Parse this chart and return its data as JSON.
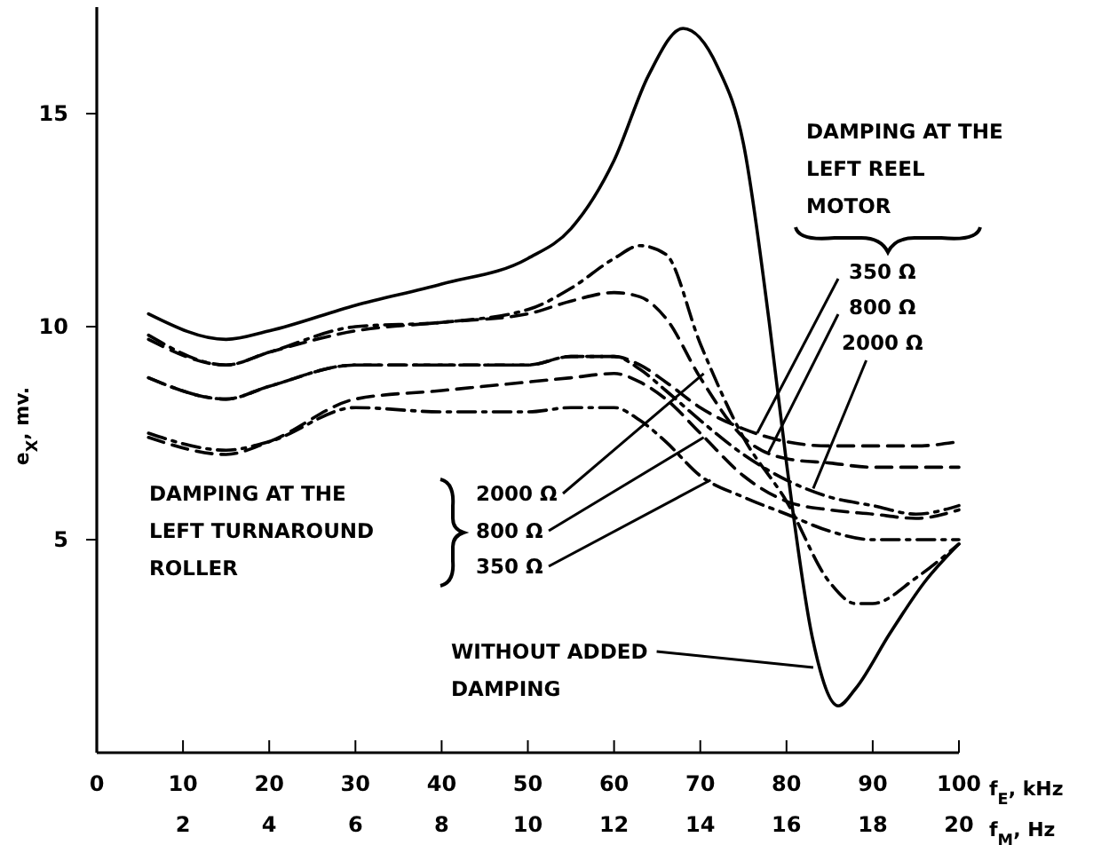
{
  "chart_data": {
    "type": "line",
    "xlabel": "f$_{E}$, kHz",
    "x2label": "f$_{M}$, Hz",
    "ylabel": "e$_{X}$, mv.",
    "xlim": [
      0,
      100
    ],
    "xticks": [
      0,
      10,
      20,
      30,
      40,
      50,
      60,
      70,
      80,
      90,
      100
    ],
    "x2lim": [
      0,
      20
    ],
    "x2ticks": [
      2,
      4,
      6,
      8,
      10,
      12,
      14,
      16,
      18,
      20
    ],
    "ylim": [
      0,
      17.5
    ],
    "yticks": [
      5,
      10,
      15
    ],
    "grid": false,
    "marker": "none",
    "x": [
      6,
      15,
      20,
      30,
      40,
      50,
      55,
      60,
      63,
      66,
      70,
      75,
      80,
      85,
      90,
      95,
      100
    ],
    "series": [
      {
        "color": "#000000",
        "line_style": "solid",
        "x": [
          6,
          15,
          20,
          30,
          40,
          50,
          55,
          60,
          64,
          68,
          72,
          75,
          78,
          80,
          83,
          86,
          88,
          92,
          96,
          100
        ],
        "values": [
          10.3,
          9.7,
          9.9,
          10.5,
          11.0,
          11.6,
          12.3,
          13.9,
          15.9,
          17.0,
          16.1,
          14.3,
          10.1,
          6.8,
          2.7,
          1.1,
          1.5,
          2.8,
          4.0,
          4.9
        ]
      },
      {
        "color": "#000000",
        "line_style": "dashdot",
        "x": [
          6,
          15,
          20,
          30,
          40,
          50,
          55,
          60,
          63,
          66,
          70,
          75,
          80,
          85,
          88,
          90,
          95,
          100
        ],
        "values": [
          9.8,
          9.1,
          9.4,
          10.0,
          10.1,
          10.4,
          10.9,
          11.6,
          11.9,
          11.7,
          9.6,
          7.4,
          5.9,
          4.0,
          3.5,
          3.5,
          4.1,
          4.9
        ]
      },
      {
        "color": "#000000",
        "line_style": "dashed",
        "values": [
          9.7,
          9.1,
          9.4,
          9.9,
          10.1,
          10.3,
          10.6,
          10.8,
          10.7,
          10.2,
          8.8,
          7.4,
          6.9,
          6.8,
          6.7,
          6.7,
          6.7
        ]
      },
      {
        "color": "#000000",
        "line_style": "dashed",
        "values": [
          8.8,
          8.3,
          8.6,
          9.1,
          9.1,
          9.1,
          9.3,
          9.3,
          9.1,
          8.7,
          8.1,
          7.6,
          7.3,
          7.2,
          7.2,
          7.2,
          7.3
        ]
      },
      {
        "color": "#000000",
        "line_style": "dashdot",
        "values": [
          8.8,
          8.3,
          8.6,
          9.1,
          9.1,
          9.1,
          9.3,
          9.3,
          9.0,
          8.5,
          7.8,
          7.0,
          6.4,
          6.0,
          5.8,
          5.6,
          5.8
        ]
      },
      {
        "color": "#000000",
        "line_style": "dashed",
        "values": [
          7.4,
          7.0,
          7.3,
          8.3,
          8.5,
          8.7,
          8.8,
          8.9,
          8.7,
          8.3,
          7.5,
          6.5,
          5.9,
          5.7,
          5.6,
          5.5,
          5.7
        ]
      },
      {
        "color": "#000000",
        "line_style": "dashdot",
        "values": [
          7.5,
          7.1,
          7.3,
          8.1,
          8.0,
          8.0,
          8.1,
          8.1,
          7.8,
          7.3,
          6.5,
          6.0,
          5.6,
          5.2,
          5.0,
          5.0,
          5.0
        ]
      }
    ],
    "annotations": [
      "DAMPING AT THE\nLEFT REEL\nMOTOR",
      {
        "text": "350 Ω",
        "x": 76.6,
        "y": 7.5
      },
      {
        "text": "800 Ω",
        "x": 77.8,
        "y": 7.0
      },
      {
        "text": "2000 Ω",
        "x": 83.1,
        "y": 6.2
      },
      "DAMPING AT THE\nLEFT TURNAROUND\nROLLER",
      {
        "text": "2000 Ω",
        "x": 70.4,
        "y": 8.9
      },
      {
        "text": "800 Ω",
        "x": 70.4,
        "y": 7.4
      },
      {
        "text": "350 Ω",
        "x": 71.2,
        "y": 6.4
      },
      {
        "text": "WITHOUT ADDED\nDAMPING",
        "x": 83.1,
        "y": 2.0
      }
    ]
  }
}
